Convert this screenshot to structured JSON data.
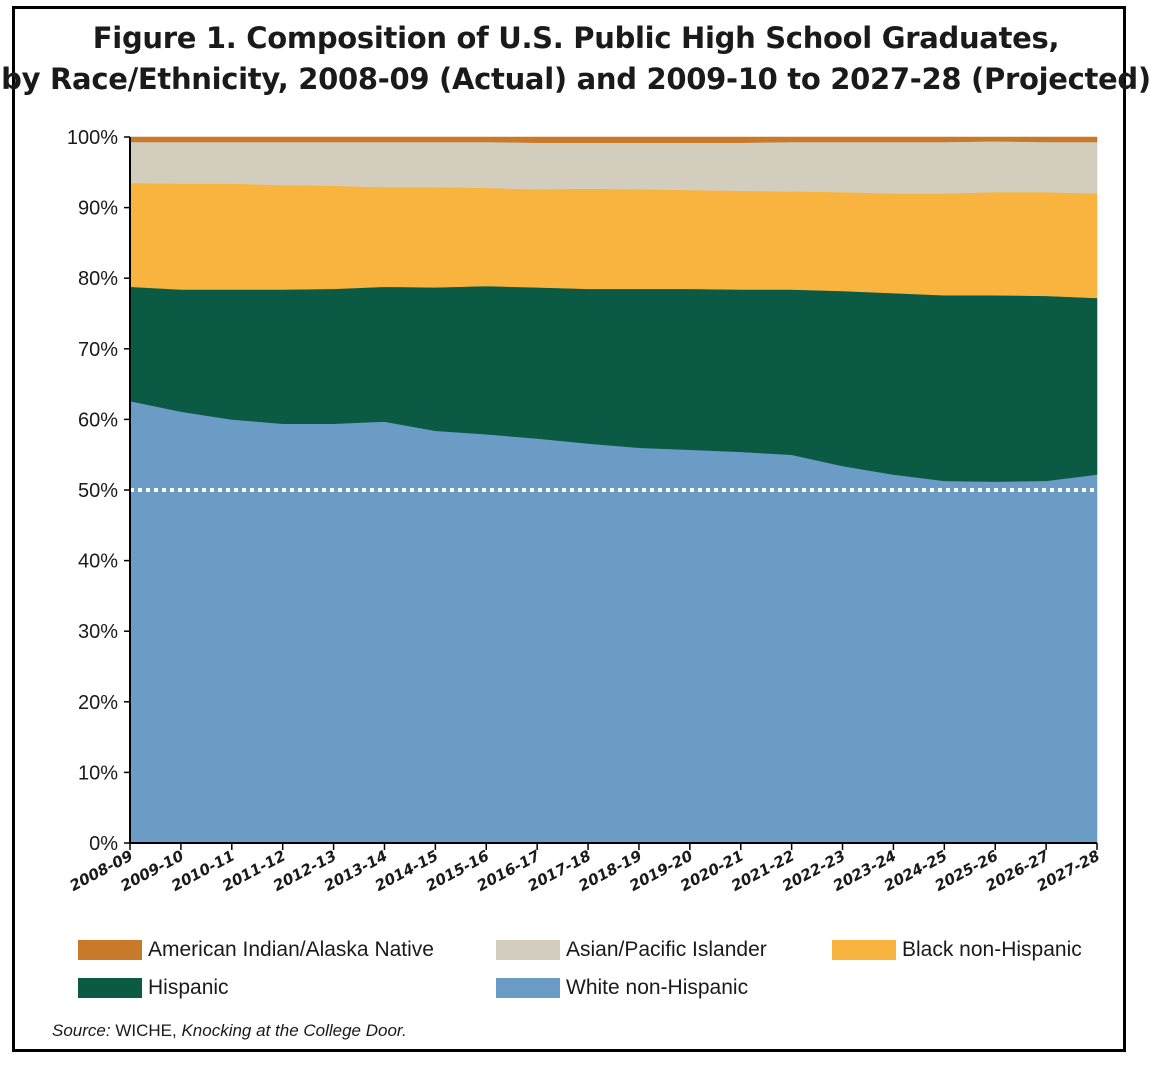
{
  "title": {
    "line1": "Figure 1. Composition of U.S. Public High School Graduates,",
    "line2": "by Race/Ethnicity, 2008-09 (Actual) and 2009-10 to 2027-28 (Projected)"
  },
  "source": {
    "label": "Source:",
    "org": "WICHE,",
    "publication": "Knocking at the College Door."
  },
  "chart_data": {
    "type": "area",
    "stacked": true,
    "categories": [
      "2008-09",
      "2009-10",
      "2010-11",
      "2011-12",
      "2012-13",
      "2013-14",
      "2014-15",
      "2015-16",
      "2016-17",
      "2017-18",
      "2018-19",
      "2019-20",
      "2020-21",
      "2021-22",
      "2022-23",
      "2023-24",
      "2024-25",
      "2025-26",
      "2026-27",
      "2027-28"
    ],
    "series": [
      {
        "name": "White non-Hispanic",
        "color": "#6a9cc6",
        "values": [
          62.6,
          61.1,
          60.0,
          59.4,
          59.4,
          59.7,
          58.4,
          57.9,
          57.3,
          56.6,
          56.0,
          55.7,
          55.4,
          55.0,
          53.4,
          52.2,
          51.3,
          51.2,
          51.3,
          52.2
        ]
      },
      {
        "name": "Hispanic",
        "color": "#0b5a44",
        "values": [
          16.2,
          17.3,
          18.4,
          19.0,
          19.1,
          19.1,
          20.3,
          21.0,
          21.4,
          21.9,
          22.5,
          22.8,
          23.0,
          23.4,
          24.8,
          25.7,
          26.3,
          26.4,
          26.2,
          25.0
        ]
      },
      {
        "name": "Black non-Hispanic",
        "color": "#f8b43f",
        "values": [
          14.7,
          15.0,
          15.0,
          14.8,
          14.6,
          14.1,
          14.2,
          13.9,
          13.9,
          14.2,
          14.1,
          14.0,
          14.0,
          13.9,
          14.0,
          14.1,
          14.4,
          14.6,
          14.7,
          14.8
        ]
      },
      {
        "name": "Asian/Pacific Islander",
        "color": "#d3cdbd",
        "values": [
          5.8,
          5.9,
          5.9,
          6.1,
          6.2,
          6.4,
          6.4,
          6.5,
          6.6,
          6.5,
          6.6,
          6.7,
          6.8,
          7.0,
          7.1,
          7.3,
          7.3,
          7.2,
          7.1,
          7.3
        ]
      },
      {
        "name": "American Indian/Alaska Native",
        "color": "#c87a2a",
        "values": [
          0.7,
          0.7,
          0.7,
          0.7,
          0.7,
          0.7,
          0.7,
          0.7,
          0.8,
          0.8,
          0.8,
          0.8,
          0.8,
          0.7,
          0.7,
          0.7,
          0.7,
          0.6,
          0.7,
          0.7
        ]
      }
    ],
    "ylim": [
      0,
      100
    ],
    "yticks": [
      "0%",
      "10%",
      "20%",
      "30%",
      "40%",
      "50%",
      "60%",
      "70%",
      "80%",
      "90%",
      "100%"
    ],
    "reference_line": {
      "value": 50,
      "style": "dotted",
      "color": "#ffffff"
    },
    "legend_position": "bottom"
  }
}
